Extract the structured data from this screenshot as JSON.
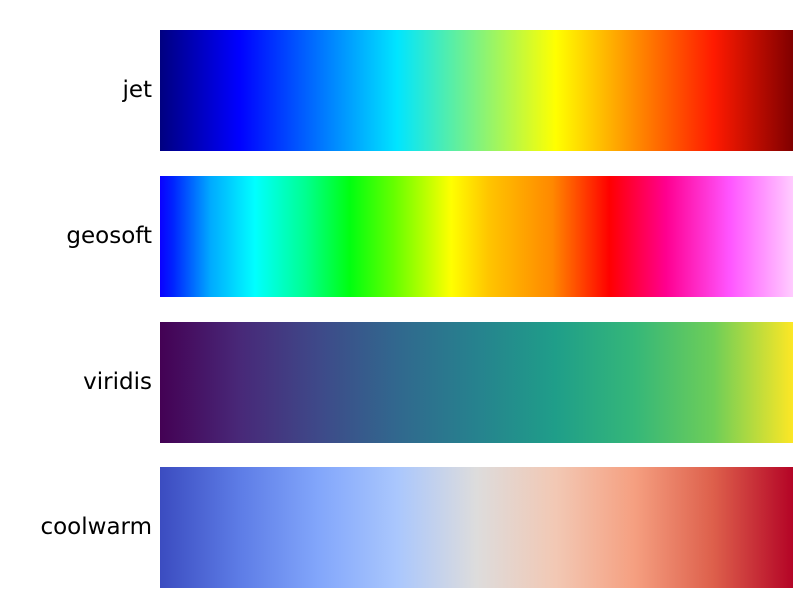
{
  "chart_data": {
    "type": "heatmap",
    "title": "",
    "xlabel": "",
    "ylabel": "",
    "xlim": [
      0,
      1
    ],
    "grid": false,
    "axes_visible": false,
    "colormaps": [
      {
        "name": "jet",
        "stops": [
          {
            "pos": 0.0,
            "color": "#000080"
          },
          {
            "pos": 0.125,
            "color": "#0000ff"
          },
          {
            "pos": 0.375,
            "color": "#00e5ff"
          },
          {
            "pos": 0.625,
            "color": "#ffff00"
          },
          {
            "pos": 0.875,
            "color": "#ff1a00"
          },
          {
            "pos": 1.0,
            "color": "#800000"
          }
        ]
      },
      {
        "name": "geosoft",
        "stops": [
          {
            "pos": 0.0,
            "color": "#0a00ff"
          },
          {
            "pos": 0.02,
            "color": "#0022ff"
          },
          {
            "pos": 0.08,
            "color": "#00aaff"
          },
          {
            "pos": 0.15,
            "color": "#00ffff"
          },
          {
            "pos": 0.23,
            "color": "#00ff90"
          },
          {
            "pos": 0.3,
            "color": "#00ff10"
          },
          {
            "pos": 0.37,
            "color": "#66ff00"
          },
          {
            "pos": 0.46,
            "color": "#ffff00"
          },
          {
            "pos": 0.52,
            "color": "#ffc400"
          },
          {
            "pos": 0.62,
            "color": "#ff8800"
          },
          {
            "pos": 0.71,
            "color": "#ff0000"
          },
          {
            "pos": 0.8,
            "color": "#ff0090"
          },
          {
            "pos": 0.9,
            "color": "#ff55ff"
          },
          {
            "pos": 1.0,
            "color": "#ffccff"
          }
        ]
      },
      {
        "name": "viridis",
        "stops": [
          {
            "pos": 0.0,
            "color": "#440154"
          },
          {
            "pos": 0.125,
            "color": "#482878"
          },
          {
            "pos": 0.25,
            "color": "#3e4989"
          },
          {
            "pos": 0.375,
            "color": "#31688e"
          },
          {
            "pos": 0.5,
            "color": "#26828e"
          },
          {
            "pos": 0.625,
            "color": "#1f9e89"
          },
          {
            "pos": 0.75,
            "color": "#35b779"
          },
          {
            "pos": 0.875,
            "color": "#6ece58"
          },
          {
            "pos": 1.0,
            "color": "#fde725"
          }
        ]
      },
      {
        "name": "coolwarm",
        "stops": [
          {
            "pos": 0.0,
            "color": "#3b4cc0"
          },
          {
            "pos": 0.125,
            "color": "#5d7ce6"
          },
          {
            "pos": 0.25,
            "color": "#82a6fb"
          },
          {
            "pos": 0.375,
            "color": "#aac7fd"
          },
          {
            "pos": 0.5,
            "color": "#dddcdc"
          },
          {
            "pos": 0.625,
            "color": "#f2c8b4"
          },
          {
            "pos": 0.75,
            "color": "#f59f80"
          },
          {
            "pos": 0.875,
            "color": "#dd5f4b"
          },
          {
            "pos": 1.0,
            "color": "#b40426"
          }
        ]
      }
    ]
  }
}
